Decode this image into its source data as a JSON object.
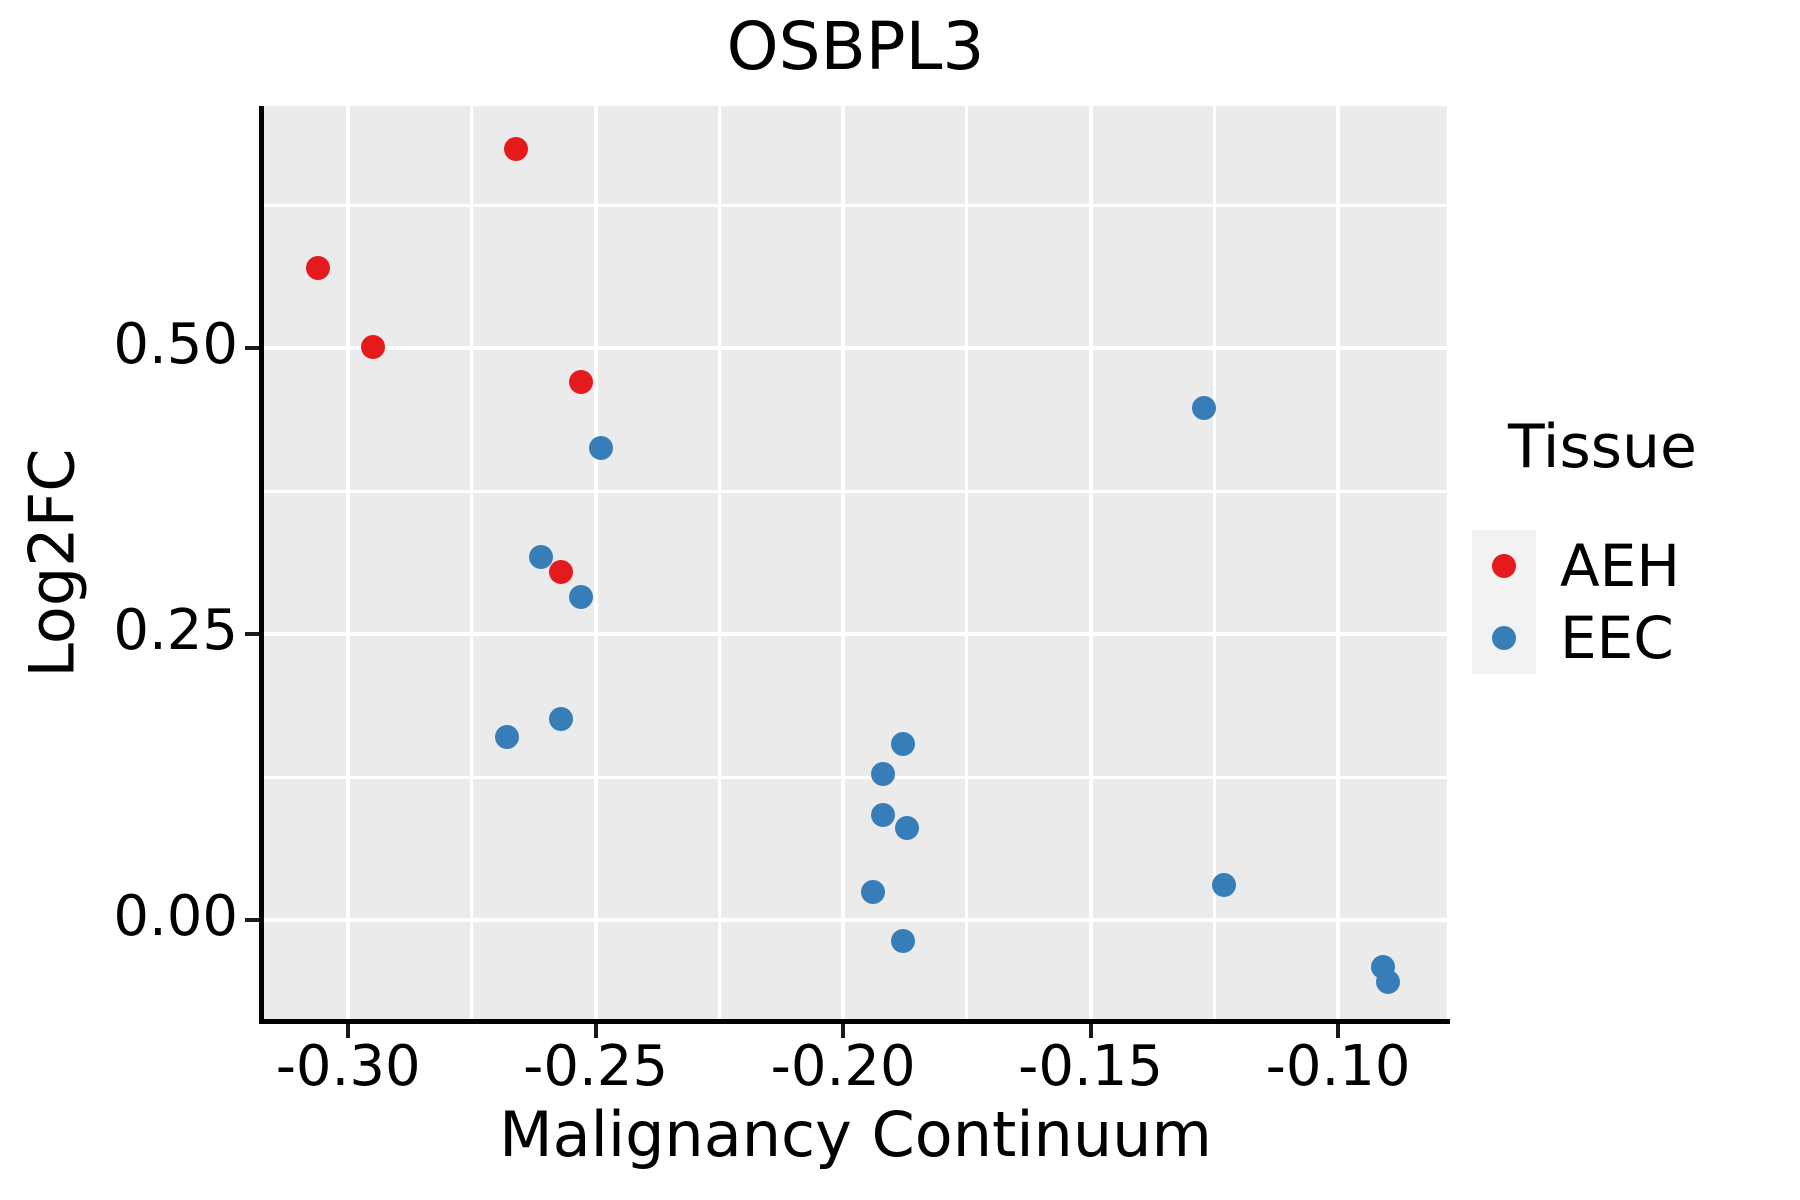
{
  "chart_data": {
    "type": "scatter",
    "title": "OSBPL3",
    "xlabel": "Malignancy Continuum",
    "ylabel": "Log2FC",
    "xlim": [
      -0.317,
      -0.078
    ],
    "ylim": [
      -0.088,
      0.712
    ],
    "grid": true,
    "x_ticks": [
      {
        "value": -0.3,
        "label": "-0.30"
      },
      {
        "value": -0.25,
        "label": "-0.25"
      },
      {
        "value": -0.2,
        "label": "-0.20"
      },
      {
        "value": -0.15,
        "label": "-0.15"
      },
      {
        "value": -0.1,
        "label": "-0.10"
      }
    ],
    "x_minor_ticks": [
      -0.275,
      -0.225,
      -0.175,
      -0.125
    ],
    "y_ticks": [
      {
        "value": 0.0,
        "label": "0.00"
      },
      {
        "value": 0.25,
        "label": "0.25"
      },
      {
        "value": 0.5,
        "label": "0.50"
      }
    ],
    "y_minor_ticks": [
      0.125,
      0.375,
      0.625
    ],
    "legend": {
      "title": "Tissue",
      "position": "right",
      "entries": [
        {
          "label": "AEH",
          "color": "#e41a1c"
        },
        {
          "label": "EEC",
          "color": "#377eb8"
        }
      ]
    },
    "series": [
      {
        "name": "AEH",
        "color": "#e41a1c",
        "points": [
          [
            -0.306,
            0.57
          ],
          [
            -0.295,
            0.501
          ],
          [
            -0.266,
            0.674
          ],
          [
            -0.257,
            0.305
          ],
          [
            -0.253,
            0.471
          ]
        ]
      },
      {
        "name": "EEC",
        "color": "#377eb8",
        "points": [
          [
            -0.268,
            0.16
          ],
          [
            -0.261,
            0.318
          ],
          [
            -0.257,
            0.176
          ],
          [
            -0.253,
            0.283
          ],
          [
            -0.249,
            0.413
          ],
          [
            -0.194,
            0.025
          ],
          [
            -0.192,
            0.128
          ],
          [
            -0.192,
            0.092
          ],
          [
            -0.188,
            0.154
          ],
          [
            -0.188,
            -0.018
          ],
          [
            -0.187,
            0.081
          ],
          [
            -0.127,
            0.448
          ],
          [
            -0.123,
            0.031
          ],
          [
            -0.091,
            -0.041
          ],
          [
            -0.09,
            -0.054
          ]
        ]
      }
    ],
    "style": {
      "panel_bg": "#ebebeb",
      "grid_color": "#ffffff",
      "axis_color": "#000000",
      "text_color": "#000000",
      "legend_key_bg": "#f2f2f2"
    }
  }
}
